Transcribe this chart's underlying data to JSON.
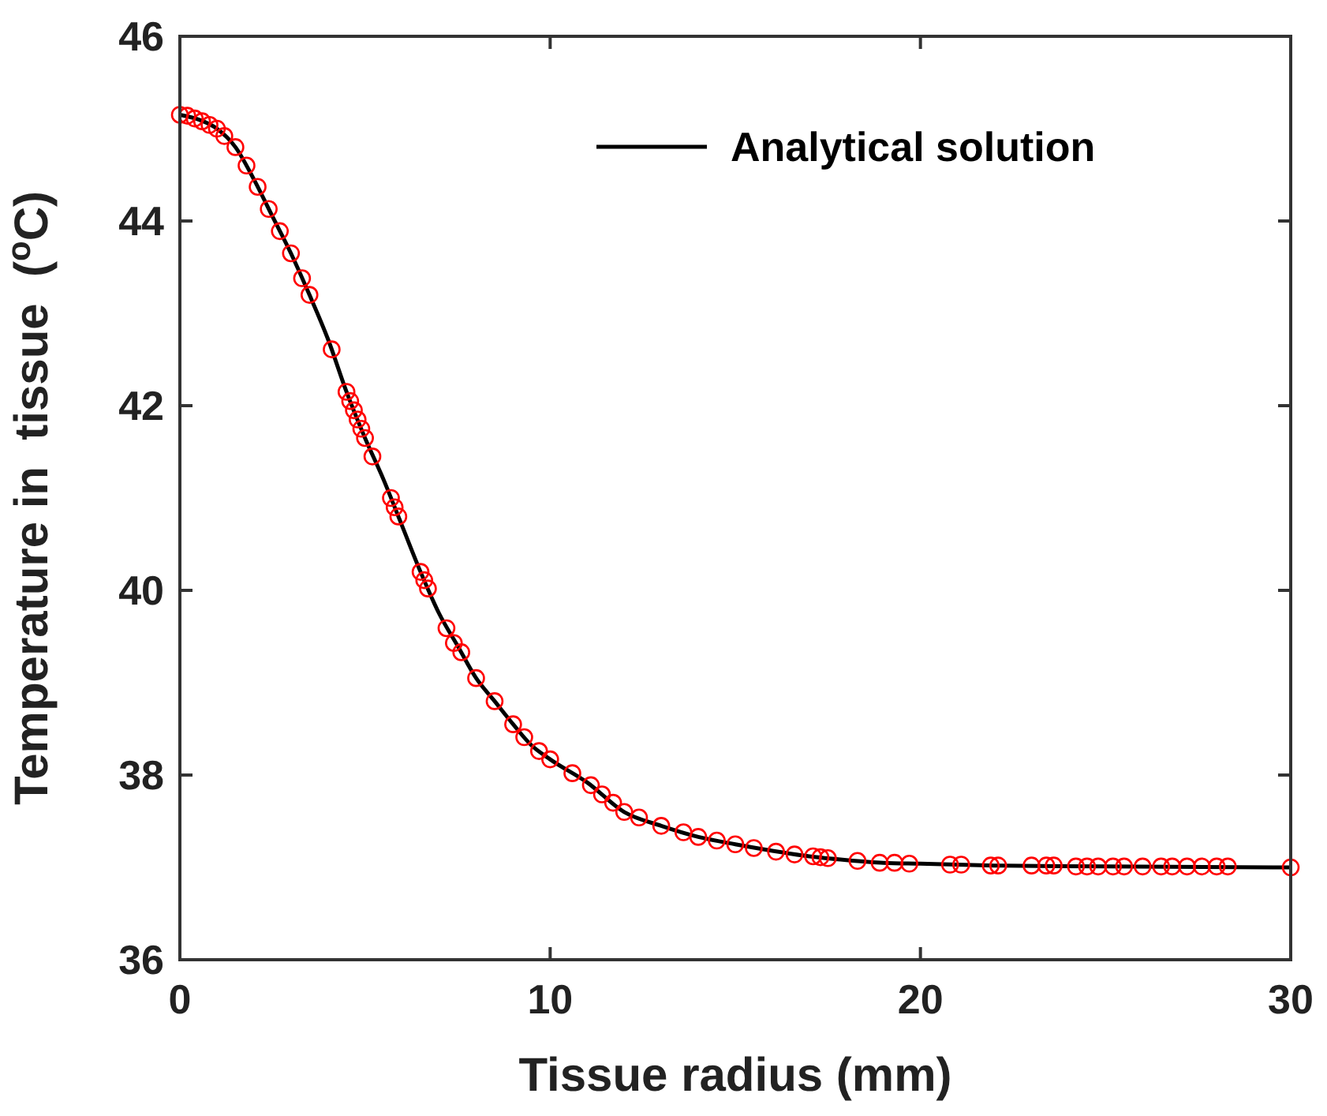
{
  "chart_data": {
    "type": "line",
    "xlabel": "Tissue radius (mm)",
    "ylabel": "Temperature in  tissue  ($^{o}$C)",
    "xlim": [
      0,
      30
    ],
    "xticks": [
      0,
      10,
      20,
      30
    ],
    "ylim": [
      36,
      46
    ],
    "yticks": [
      36,
      38,
      40,
      42,
      44,
      46
    ],
    "grid": false,
    "legend": "top right",
    "series": [
      {
        "name": "Analytical solution",
        "color": "#000000",
        "line_style": "solid",
        "x": [
          0,
          0.5,
          1,
          1.5,
          2,
          2.5,
          3,
          3.5,
          4,
          4.5,
          5,
          5.5,
          6,
          6.5,
          7,
          7.5,
          8,
          8.5,
          9,
          9.5,
          10,
          11,
          12,
          13,
          14,
          15,
          16,
          17,
          18,
          19,
          20,
          22,
          25,
          30
        ],
        "values": [
          45.15,
          45.1,
          45.0,
          44.8,
          44.45,
          44.05,
          43.65,
          43.2,
          42.72,
          42.15,
          41.65,
          41.2,
          40.7,
          40.2,
          39.75,
          39.4,
          39.05,
          38.8,
          38.55,
          38.32,
          38.17,
          37.92,
          37.6,
          37.45,
          37.33,
          37.25,
          37.18,
          37.12,
          37.08,
          37.05,
          37.04,
          37.02,
          37.01,
          37.0
        ]
      },
      {
        "type": "scatter",
        "color": "#ff0000",
        "marker": "circle",
        "x": [
          0,
          0.2,
          0.4,
          0.6,
          0.8,
          1.0,
          1.2,
          1.5,
          1.8,
          2.1,
          2.4,
          2.7,
          3.0,
          3.3,
          3.5,
          4.1,
          4.5,
          4.6,
          4.7,
          4.8,
          4.9,
          5.0,
          5.2,
          5.7,
          5.8,
          5.9,
          6.5,
          6.6,
          6.7,
          7.2,
          7.4,
          7.6,
          8.0,
          8.5,
          9.0,
          9.3,
          9.7,
          10.0,
          10.6,
          11.1,
          11.4,
          11.7,
          12.0,
          12.4,
          13.0,
          13.6,
          14.0,
          14.5,
          15.0,
          15.5,
          16.1,
          16.6,
          17.1,
          17.3,
          17.5,
          18.3,
          18.9,
          19.3,
          19.7,
          20.8,
          21.1,
          21.9,
          22.1,
          23.0,
          23.4,
          23.6,
          24.2,
          24.5,
          24.8,
          25.2,
          25.5,
          26.0,
          26.5,
          26.8,
          27.2,
          27.6,
          28.0,
          28.3,
          30
        ],
        "values": [
          45.15,
          45.14,
          45.11,
          45.08,
          45.04,
          45.0,
          44.92,
          44.8,
          44.6,
          44.37,
          44.13,
          43.89,
          43.65,
          43.38,
          43.2,
          42.61,
          42.15,
          42.05,
          41.95,
          41.85,
          41.75,
          41.65,
          41.45,
          41.0,
          40.9,
          40.8,
          40.2,
          40.11,
          40.02,
          39.59,
          39.43,
          39.33,
          39.05,
          38.8,
          38.55,
          38.41,
          38.26,
          38.17,
          38.02,
          37.89,
          37.79,
          37.7,
          37.6,
          37.54,
          37.45,
          37.38,
          37.33,
          37.29,
          37.25,
          37.21,
          37.17,
          37.14,
          37.12,
          37.11,
          37.1,
          37.07,
          37.05,
          37.05,
          37.04,
          37.03,
          37.03,
          37.02,
          37.02,
          37.02,
          37.02,
          37.02,
          37.01,
          37.01,
          37.01,
          37.01,
          37.01,
          37.01,
          37.01,
          37.01,
          37.01,
          37.01,
          37.01,
          37.01,
          37.0
        ]
      }
    ]
  }
}
